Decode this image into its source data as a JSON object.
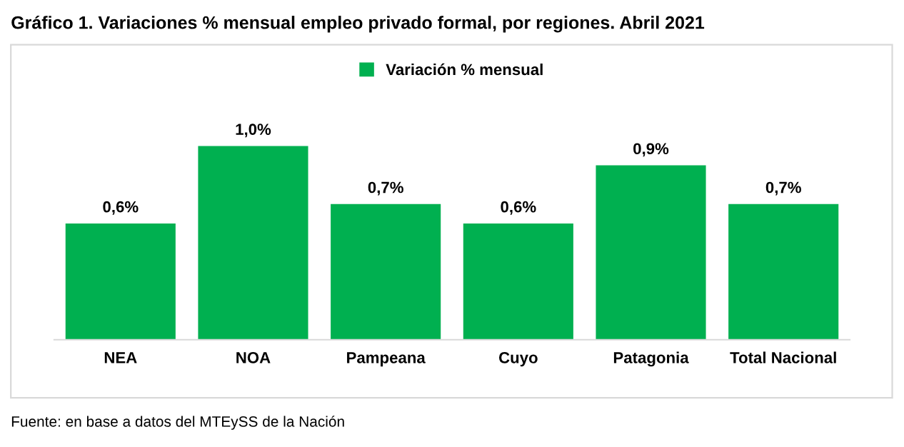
{
  "chart_data": {
    "type": "bar",
    "title": "Gráfico 1. Variaciones % mensual empleo privado formal, por regiones. Abril 2021",
    "categories": [
      "NEA",
      "NOA",
      "Pampeana",
      "Cuyo",
      "Patagonia",
      "Total Nacional"
    ],
    "series": [
      {
        "name": "Variación % mensual",
        "color": "#00b050",
        "values": [
          0.6,
          1.0,
          0.7,
          0.6,
          0.9,
          0.7
        ],
        "value_labels": [
          "0,6%",
          "1,0%",
          "0,7%",
          "0,6%",
          "0,9%",
          "0,7%"
        ]
      }
    ],
    "legend": "top",
    "grid": false,
    "annotations": [
      "Fuente: en base a datos del MTEySS de la Nación"
    ]
  }
}
